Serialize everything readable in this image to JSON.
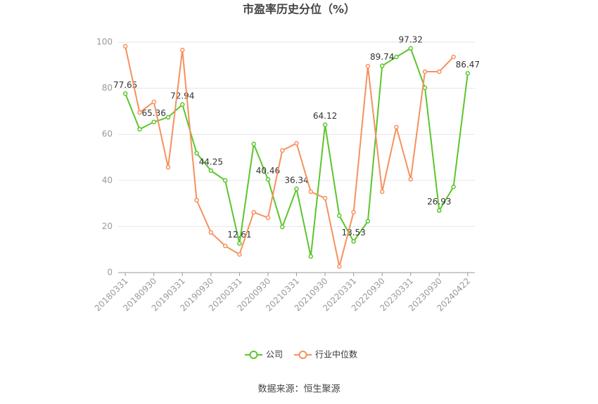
{
  "chart_data": {
    "type": "line",
    "title": "市盈率历史分位（%）",
    "source": "数据来源：恒生聚源",
    "categories": [
      "20180331",
      null,
      "20180930",
      null,
      "20190331",
      null,
      "20190930",
      null,
      "20200331",
      null,
      "20200930",
      null,
      "20210331",
      null,
      "20210930",
      null,
      "20220331",
      null,
      "20220930",
      null,
      "20230331",
      null,
      "20230930",
      null,
      "20240422"
    ],
    "series": [
      {
        "name": "公司",
        "color": "#5cc52c",
        "values": [
          77.65,
          62.2,
          65.36,
          67.4,
          72.94,
          51.8,
          44.25,
          40,
          12.61,
          55.8,
          40.46,
          19.8,
          36.34,
          7,
          64.12,
          24.7,
          13.53,
          22.3,
          89.74,
          93.6,
          97.32,
          80.2,
          26.93,
          37.2,
          86.47
        ]
      },
      {
        "name": "行业中位数",
        "color": "#f5915f",
        "values": [
          98.2,
          69.5,
          74.1,
          45.7,
          96.6,
          31.4,
          17.4,
          11.6,
          7.9,
          26.2,
          23.8,
          53,
          56.1,
          35.1,
          32.3,
          2.7,
          26.2,
          89.6,
          35.1,
          63.1,
          40.5,
          87.2,
          87.2,
          93.6,
          null
        ]
      }
    ],
    "ylim": [
      0,
      100
    ],
    "yticks": [
      0,
      20,
      40,
      60,
      80,
      100
    ],
    "grid": true
  }
}
